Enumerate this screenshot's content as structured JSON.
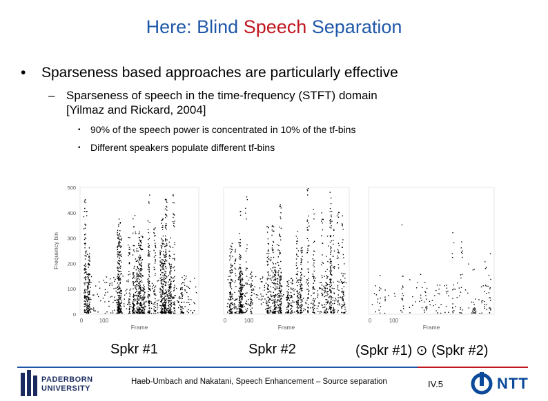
{
  "slide": {
    "title_pre": "Here: Blind ",
    "title_highlight": "Speech",
    "title_post": " Separation",
    "bullet1": "Sparseness based approaches are particularly effective",
    "bullet1_marker": "•",
    "bullet2_marker": "–",
    "bullet2_line1": "Sparseness of speech in the time-frequency (STFT) domain",
    "bullet2_line2": "[Yilmaz and Rickard, 2004]",
    "bullet3_marker": "•",
    "bullet3a": "90% of the speech power is concentrated in 10% of the tf-bins",
    "bullet3b": "Different speakers populate different tf-bins",
    "footer": "Haeb-Umbach and Nakatani, Speech Enhancement – Source separation",
    "page_number": "IV.5",
    "uni_line1": "PADERBORN",
    "uni_line2": "UNIVERSITY",
    "company": "NTT",
    "accent_blue": "#1f57a8",
    "accent_red": "#c0161f"
  },
  "chart_data": [
    {
      "type": "scatter",
      "caption": "Spkr #1",
      "xlabel": "Frame",
      "ylabel": "Frequency bin",
      "xticks": [
        "0",
        "100"
      ],
      "yticks": [
        "0",
        "100",
        "200",
        "300",
        "400",
        "500"
      ],
      "ylim": [
        0,
        500
      ],
      "density": "high"
    },
    {
      "type": "scatter",
      "caption": "Spkr #2",
      "xlabel": "Frame",
      "ylabel": "",
      "xticks": [
        "0",
        "100"
      ],
      "yticks": [],
      "ylim": [
        0,
        500
      ],
      "density": "high"
    },
    {
      "type": "scatter",
      "caption": "(Spkr #1) ⊙ (Spkr #2)",
      "xlabel": "Frame",
      "ylabel": "",
      "xticks": [
        "0",
        "100"
      ],
      "yticks": [],
      "ylim": [
        0,
        500
      ],
      "density": "low"
    }
  ]
}
